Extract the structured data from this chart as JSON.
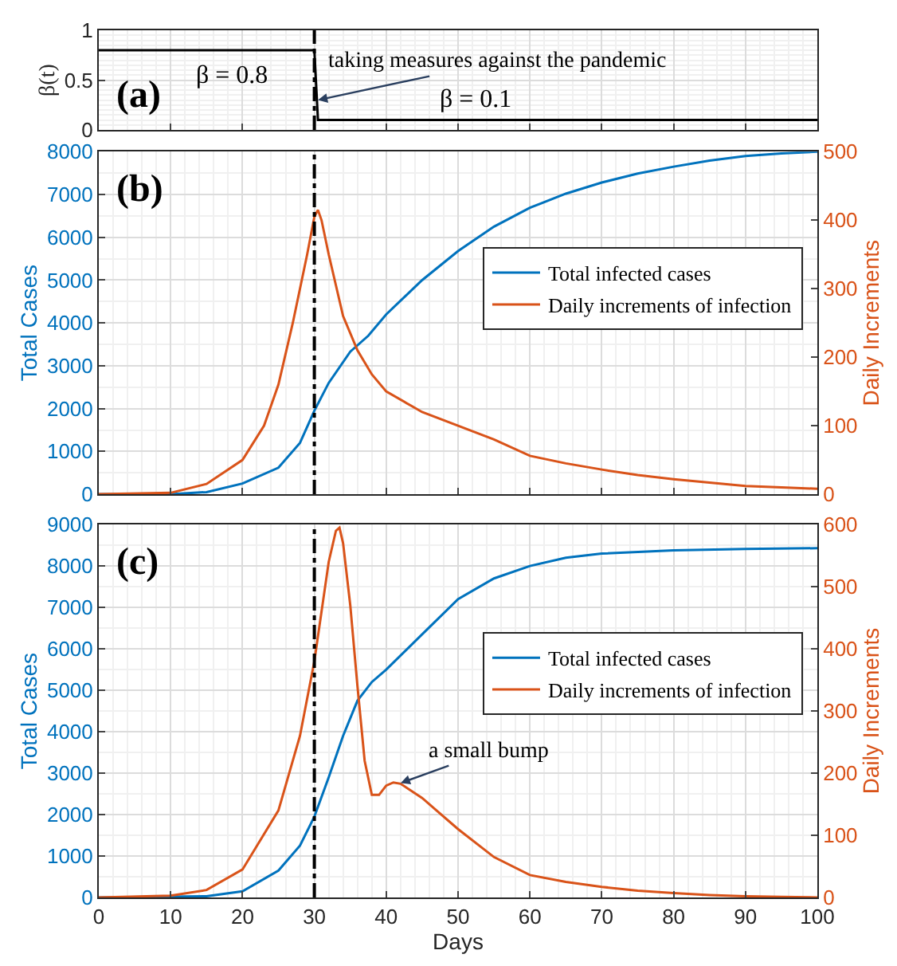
{
  "chart_data": [
    {
      "type": "line",
      "ylabel": "β(t)",
      "xlim": [
        0,
        100
      ],
      "ylim": [
        0,
        1
      ],
      "xticks": [
        0,
        10,
        20,
        30,
        40,
        50,
        60,
        70,
        80,
        90,
        100
      ],
      "yticks": [
        0,
        0.5,
        1
      ],
      "tick_labels": "y",
      "grid": true,
      "legend": false,
      "series": [
        {
          "color": "#000000",
          "x": [
            0,
            30,
            30.5,
            100
          ],
          "values": [
            0.8,
            0.8,
            0.1,
            0.1
          ]
        }
      ],
      "ref_lines": [
        {
          "axis": "x",
          "value": 30,
          "color": "#000000",
          "line_style": "dashed"
        }
      ],
      "annotations": [
        "(a)",
        "β = 0.8",
        "β = 0.1",
        {
          "text": "taking measures against the pandemic",
          "x": 30.5,
          "y": 0.3
        }
      ]
    },
    {
      "type": "line",
      "ylabel": "Total Cases",
      "y2label": "Daily Increments",
      "xlim": [
        0,
        100
      ],
      "ylim": [
        0,
        8000
      ],
      "y2lim": [
        0,
        500
      ],
      "xticks": [
        0,
        10,
        20,
        30,
        40,
        50,
        60,
        70,
        80,
        90,
        100
      ],
      "yticks": [
        0,
        1000,
        2000,
        3000,
        4000,
        5000,
        6000,
        7000,
        8000
      ],
      "y2ticks": [
        0,
        100,
        200,
        300,
        400,
        500
      ],
      "tick_labels": "y",
      "grid": true,
      "legend": "right",
      "series": [
        {
          "name": "Total infected cases",
          "color": "#0072bd",
          "x": [
            0,
            10,
            15,
            20,
            25,
            28,
            30,
            32,
            35,
            37.5,
            40,
            45,
            50,
            55,
            60,
            65,
            70,
            75,
            80,
            85,
            90,
            95,
            100
          ],
          "values": [
            0,
            0,
            50,
            250,
            620,
            1200,
            1950,
            2600,
            3330,
            3700,
            4200,
            5000,
            5680,
            6250,
            6690,
            7020,
            7280,
            7490,
            7650,
            7790,
            7900,
            7960,
            8000
          ]
        },
        {
          "name": "Daily increments of infection",
          "color": "#d95319",
          "axis": "y2",
          "x": [
            0,
            10,
            15,
            20,
            23,
            25,
            27,
            29,
            30,
            30.5,
            31,
            32,
            34,
            36,
            38,
            40,
            45,
            50,
            55,
            60,
            65,
            70,
            75,
            80,
            85,
            90,
            95,
            100
          ],
          "values": [
            0,
            2,
            15,
            50,
            100,
            160,
            250,
            350,
            405,
            415,
            400,
            350,
            260,
            210,
            175,
            150,
            120,
            100,
            80,
            56,
            45,
            36,
            28,
            22,
            17,
            12,
            10,
            8
          ]
        }
      ],
      "ref_lines": [
        {
          "axis": "x",
          "value": 30,
          "color": "#000000",
          "line_style": "dashed"
        }
      ],
      "annotations": [
        "(b)"
      ]
    },
    {
      "type": "line",
      "xlabel": "Days",
      "ylabel": "Total Cases",
      "y2label": "Daily Increments",
      "xlim": [
        0,
        100
      ],
      "ylim": [
        0,
        9000
      ],
      "y2lim": [
        0,
        600
      ],
      "xticks": [
        0,
        10,
        20,
        30,
        40,
        50,
        60,
        70,
        80,
        90,
        100
      ],
      "yticks": [
        0,
        1000,
        2000,
        3000,
        4000,
        5000,
        6000,
        7000,
        8000,
        9000
      ],
      "y2ticks": [
        0,
        100,
        200,
        300,
        400,
        500,
        600
      ],
      "grid": true,
      "legend": "right",
      "series": [
        {
          "name": "Total infected cases",
          "color": "#0072bd",
          "x": [
            0,
            15,
            20,
            25,
            28,
            30,
            32,
            34,
            36,
            38,
            40,
            45,
            50,
            55,
            60,
            65,
            70,
            80,
            90,
            100
          ],
          "values": [
            0,
            30,
            150,
            650,
            1250,
            1950,
            2900,
            3900,
            4750,
            5200,
            5500,
            6350,
            7200,
            7700,
            8000,
            8200,
            8300,
            8380,
            8410,
            8430
          ]
        },
        {
          "name": "Daily increments of infection",
          "color": "#d95319",
          "axis": "y2",
          "x": [
            0,
            10,
            15,
            20,
            25,
            28,
            30,
            31,
            32,
            33,
            33.5,
            34,
            35,
            36,
            37,
            38,
            39,
            40,
            41,
            42,
            45,
            50,
            55,
            60,
            65,
            70,
            75,
            80,
            85,
            90,
            95,
            100
          ],
          "values": [
            0,
            3,
            12,
            45,
            140,
            260,
            380,
            460,
            540,
            590,
            595,
            570,
            470,
            340,
            220,
            165,
            165,
            180,
            185,
            183,
            160,
            110,
            65,
            36,
            25,
            17,
            11,
            7,
            4,
            2,
            1,
            0
          ]
        }
      ],
      "ref_lines": [
        {
          "axis": "x",
          "value": 30,
          "color": "#000000",
          "line_style": "dashed"
        }
      ],
      "annotations": [
        "(c)",
        {
          "text": "a small bump",
          "x": 42,
          "y": 2760
        }
      ]
    }
  ]
}
